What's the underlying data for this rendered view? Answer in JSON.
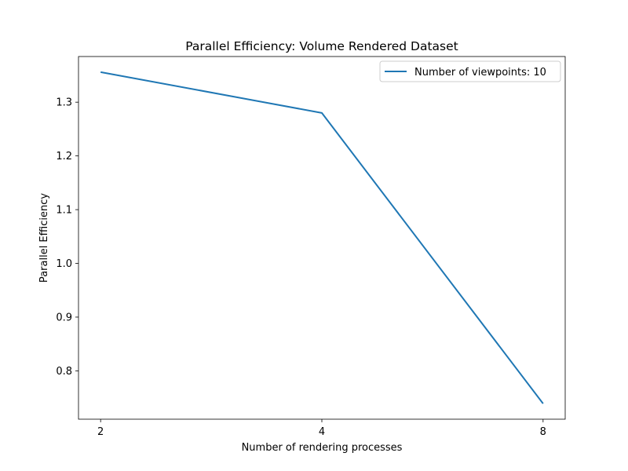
{
  "chart_data": {
    "type": "line",
    "title": "Parallel Efficiency: Volume Rendered Dataset",
    "xlabel": "Number of rendering processes",
    "ylabel": "Parallel Efficiency",
    "x": [
      2,
      4,
      8
    ],
    "x_tick_labels": [
      "2",
      "4",
      "8"
    ],
    "y_ticks": [
      0.8,
      0.9,
      1.0,
      1.1,
      1.2,
      1.3
    ],
    "y_tick_labels": [
      "0.8",
      "0.9",
      "1.0",
      "1.1",
      "1.2",
      "1.3"
    ],
    "ylim": [
      0.71,
      1.385
    ],
    "grid": false,
    "legend_position": "top-right",
    "series": [
      {
        "name": "Number of viewpoints: 10",
        "color": "#1f77b4",
        "values": [
          1.356,
          1.28,
          0.739
        ]
      }
    ]
  }
}
